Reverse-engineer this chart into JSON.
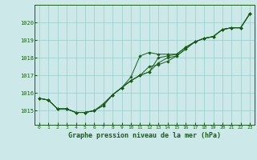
{
  "background_color": "#cce8e8",
  "plot_bg_color": "#cce8e8",
  "grid_color": "#99cccc",
  "line_color": "#1a5c1a",
  "marker_color": "#1a5c1a",
  "title": "Graphe pression niveau de la mer (hPa)",
  "ylabel_ticks": [
    1015,
    1016,
    1017,
    1018,
    1019,
    1020
  ],
  "ylim": [
    1014.2,
    1021.0
  ],
  "xlim": [
    -0.5,
    23.5
  ],
  "xticks": [
    0,
    1,
    2,
    3,
    4,
    5,
    6,
    7,
    8,
    9,
    10,
    11,
    12,
    13,
    14,
    15,
    16,
    17,
    18,
    19,
    20,
    21,
    22,
    23
  ],
  "series": [
    [
      1015.7,
      1015.6,
      1015.1,
      1015.1,
      1014.9,
      1014.9,
      1015.0,
      1015.3,
      1015.9,
      1016.3,
      1016.7,
      1017.0,
      1017.2,
      1018.0,
      1018.1,
      1018.2,
      1018.6,
      1018.9,
      1019.1,
      1019.2,
      1019.6,
      1019.7,
      1019.7,
      1020.5
    ],
    [
      1015.7,
      1015.6,
      1015.1,
      1015.1,
      1014.9,
      1014.9,
      1015.0,
      1015.3,
      1015.9,
      1016.3,
      1016.7,
      1017.0,
      1017.5,
      1017.6,
      1017.8,
      1018.1,
      1018.5,
      1018.9,
      1019.1,
      1019.2,
      1019.6,
      1019.7,
      1019.7,
      1020.5
    ],
    [
      1015.7,
      1015.6,
      1015.1,
      1015.1,
      1014.9,
      1014.9,
      1015.0,
      1015.4,
      1015.9,
      1016.3,
      1016.9,
      1018.1,
      1018.3,
      1018.2,
      1018.2,
      1018.2,
      1018.6,
      1018.9,
      1019.1,
      1019.2,
      1019.6,
      1019.7,
      1019.7,
      1020.5
    ],
    [
      1015.7,
      1015.6,
      1015.1,
      1015.1,
      1014.9,
      1014.9,
      1015.0,
      1015.3,
      1015.9,
      1016.3,
      1016.7,
      1017.0,
      1017.2,
      1017.7,
      1018.0,
      1018.1,
      1018.5,
      1018.9,
      1019.1,
      1019.2,
      1019.6,
      1019.7,
      1019.7,
      1020.5
    ]
  ]
}
